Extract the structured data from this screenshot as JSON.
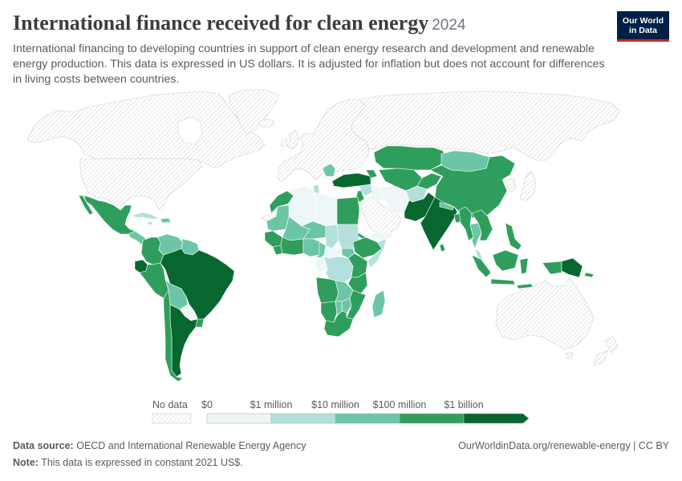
{
  "header": {
    "title": "International finance received for clean energy",
    "year": "2024",
    "subtitle": "International financing to developing countries in support of clean energy research and development and renewable energy production. This data is expressed in US dollars. It is adjusted for inflation but does not account for differences in living costs between countries."
  },
  "logo": {
    "line1": "Our World",
    "line2": "in Data",
    "background": "#002147",
    "accent": "#ce261e"
  },
  "legend": {
    "no_data_label": "No data",
    "ticks": [
      "$0",
      "$1 million",
      "$10 million",
      "$100 million",
      "$1 billion"
    ],
    "colors": [
      "#eef7f8",
      "#b3dfdc",
      "#6cc6a6",
      "#2f9e5c",
      "#07672f"
    ],
    "no_data_hatch_color": "#cfcfcf"
  },
  "map": {
    "fills": {
      "canada": 0,
      "greenland": 0,
      "iceland": 0,
      "usa": 0,
      "europe": 0,
      "uk": 0,
      "ireland": 0,
      "russia": 0,
      "korea": 0,
      "japan": 0,
      "arabia": 0,
      "western-sahara": 0,
      "australia": 0,
      "new-zealand": 0,
      "mexico": 4,
      "central-america": 3,
      "cuba": 2,
      "hispaniola": 3,
      "jamaica": 2,
      "colombia": 4,
      "venezuela": 3,
      "guianas": 3,
      "ecuador": 5,
      "peru": 4,
      "brazil": 5,
      "bolivia": 3,
      "paraguay": 1,
      "argentina": 5,
      "chile": 4,
      "uruguay": 4,
      "kazakhstan": 4,
      "uzbekistan-turkmenistan": 4,
      "kyrgyzstan-tajikistan": 4,
      "mongolia": 3,
      "china": 4,
      "turkey": 5,
      "caucasus": 4,
      "balkans": 3,
      "syria": 2,
      "iraq": 1,
      "jordan-lebanon": 4,
      "yemen": 1,
      "iran": 1,
      "afghanistan": 2,
      "pakistan": 5,
      "india": 5,
      "nepal": 3,
      "bangladesh": 4,
      "sri-lanka": 4,
      "myanmar": 4,
      "thailand": 3,
      "indochina": 4,
      "malaysia": 2,
      "philippines": 4,
      "indonesia": 4,
      "papua-new-guinea": 5,
      "solomon-islands": 4,
      "morocco": 4,
      "algeria": 1,
      "tunisia": 2,
      "libya": 1,
      "egypt": 4,
      "mauritania": 3,
      "mali": 3,
      "niger": 3,
      "chad": 2,
      "sudan": 2,
      "eritrea": 4,
      "senegal-guinea": 4,
      "sierra-leone-liberia": 4,
      "west-africa-coast": 4,
      "nigeria": 3,
      "cameroon": 3,
      "central-african-republic": 1,
      "ethiopia": 4,
      "somalia": 2,
      "south-sudan": 3,
      "congo-gabon": 1,
      "dr-congo": 2,
      "kenya-uganda": 4,
      "tanzania": 4,
      "angola": 4,
      "zambia": 3,
      "mozambique-malawi": 4,
      "zimbabwe": 3,
      "namibia": 4,
      "botswana": 3,
      "south-africa": 4,
      "madagascar": 3
    }
  },
  "footer": {
    "source_label": "Data source:",
    "source_text": "OECD and International Renewable Energy Agency",
    "url_text": "OurWorldinData.org/renewable-energy | CC BY",
    "note_label": "Note:",
    "note_text": "This data is expressed in constant 2021 US$."
  }
}
